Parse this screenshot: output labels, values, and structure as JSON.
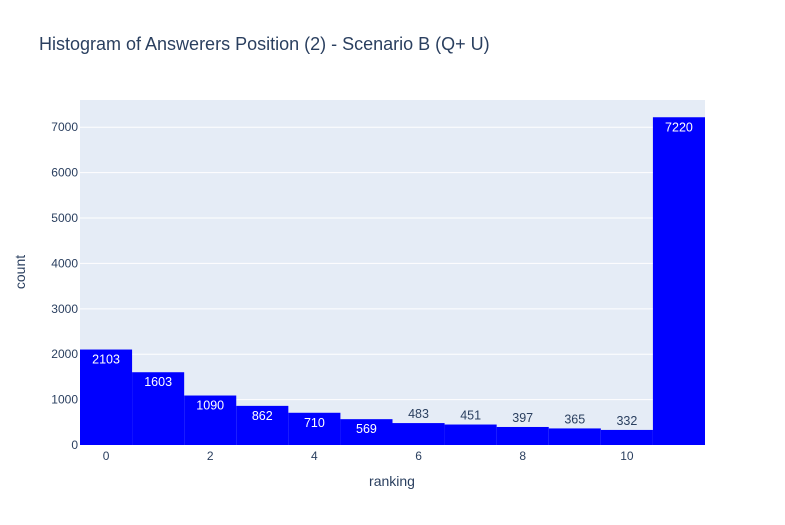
{
  "chart_data": {
    "type": "bar",
    "title": "Histogram of Answerers Position (2) - Scenario B (Q+ U)",
    "xlabel": "ranking",
    "ylabel": "count",
    "x": [
      0,
      1,
      2,
      3,
      4,
      5,
      6,
      7,
      8,
      9,
      10,
      11
    ],
    "values": [
      2103,
      1603,
      1090,
      862,
      710,
      569,
      483,
      451,
      397,
      365,
      332,
      7220
    ],
    "data_labels": [
      "2103",
      "1603",
      "1090",
      "862",
      "710",
      "569",
      "483",
      "451",
      "397",
      "365",
      "332",
      "7220"
    ],
    "xlim": [
      -0.5,
      11.5
    ],
    "ylim": [
      0,
      7600
    ],
    "xticks": [
      0,
      2,
      4,
      6,
      8,
      10
    ],
    "xtick_labels": [
      "0",
      "2",
      "4",
      "6",
      "8",
      "10"
    ],
    "yticks": [
      0,
      1000,
      2000,
      3000,
      4000,
      5000,
      6000,
      7000
    ],
    "ytick_labels": [
      "0",
      "1000",
      "2000",
      "3000",
      "4000",
      "5000",
      "6000",
      "7000"
    ],
    "grid": true,
    "colors": {
      "bar": "#0000ff",
      "plot_bg": "#e5ecf6",
      "grid": "#ffffff",
      "text": "#2a3f5f",
      "label_inside": "#ffffff",
      "label_outside": "#2a3f5f"
    }
  }
}
